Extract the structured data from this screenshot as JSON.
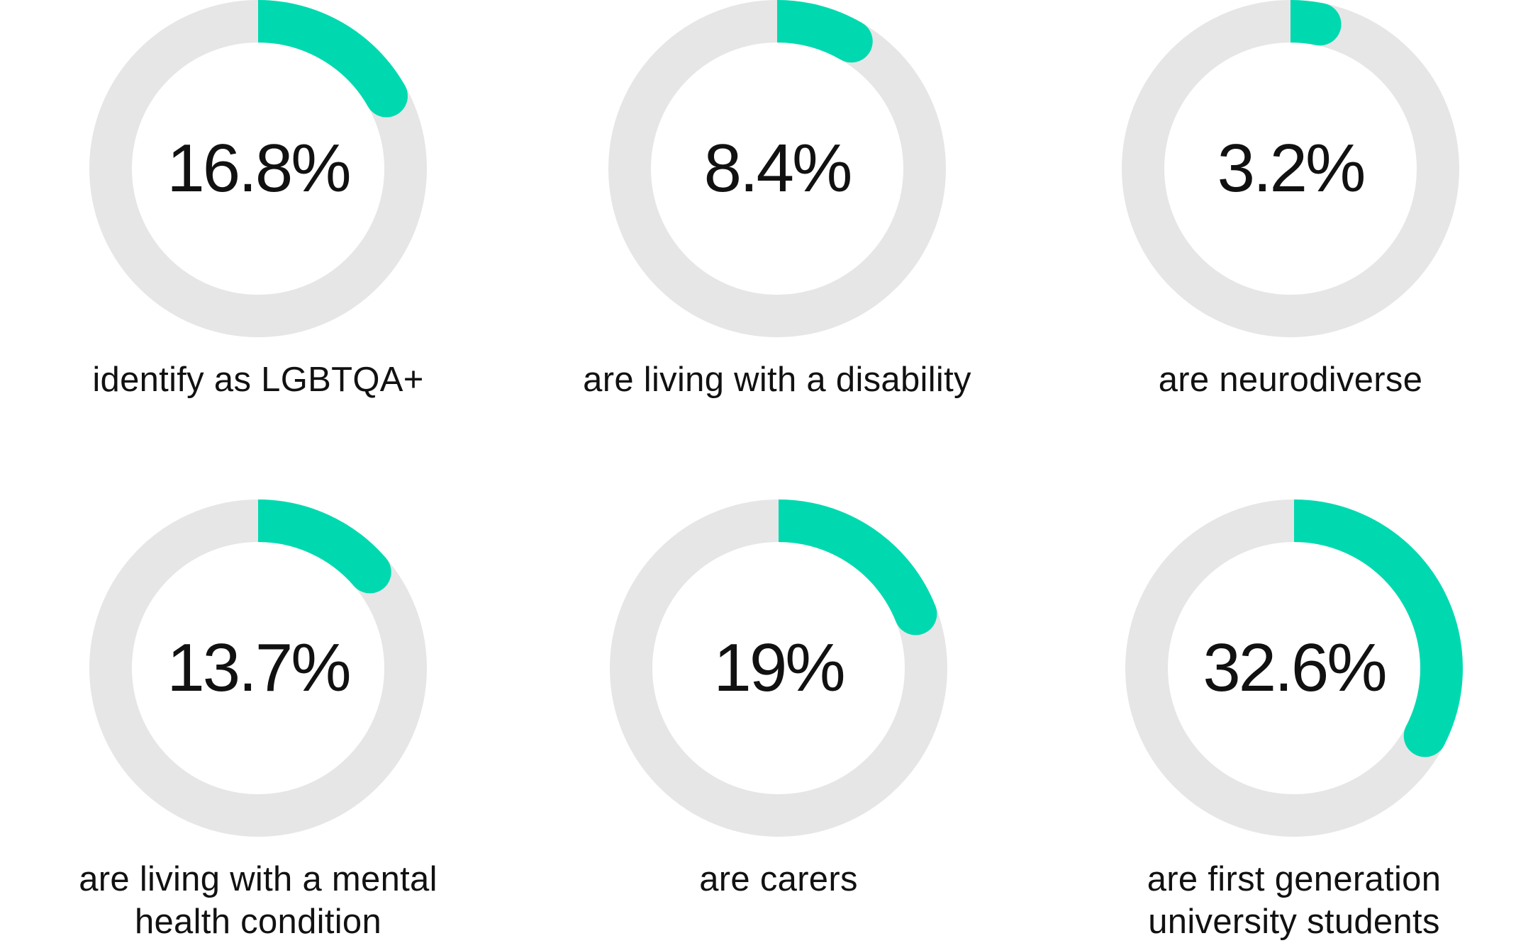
{
  "chart_data": [
    {
      "type": "pie",
      "value": 16.8,
      "value_label": "16.8%",
      "caption": "identify as LGBTQA+"
    },
    {
      "type": "pie",
      "value": 8.4,
      "value_label": "8.4%",
      "caption": "are living with a disability"
    },
    {
      "type": "pie",
      "value": 3.2,
      "value_label": "3.2%",
      "caption": "are neurodiverse"
    },
    {
      "type": "pie",
      "value": 13.7,
      "value_label": "13.7%",
      "caption": "are living with a mental health condition"
    },
    {
      "type": "pie",
      "value": 19,
      "value_label": "19%",
      "caption": "are carers"
    },
    {
      "type": "pie",
      "value": 32.6,
      "value_label": "32.6%",
      "caption": "are first generation university students"
    }
  ],
  "colors": {
    "accent": "#00d9b0",
    "track": "#e6e6e6",
    "text": "#111111"
  }
}
